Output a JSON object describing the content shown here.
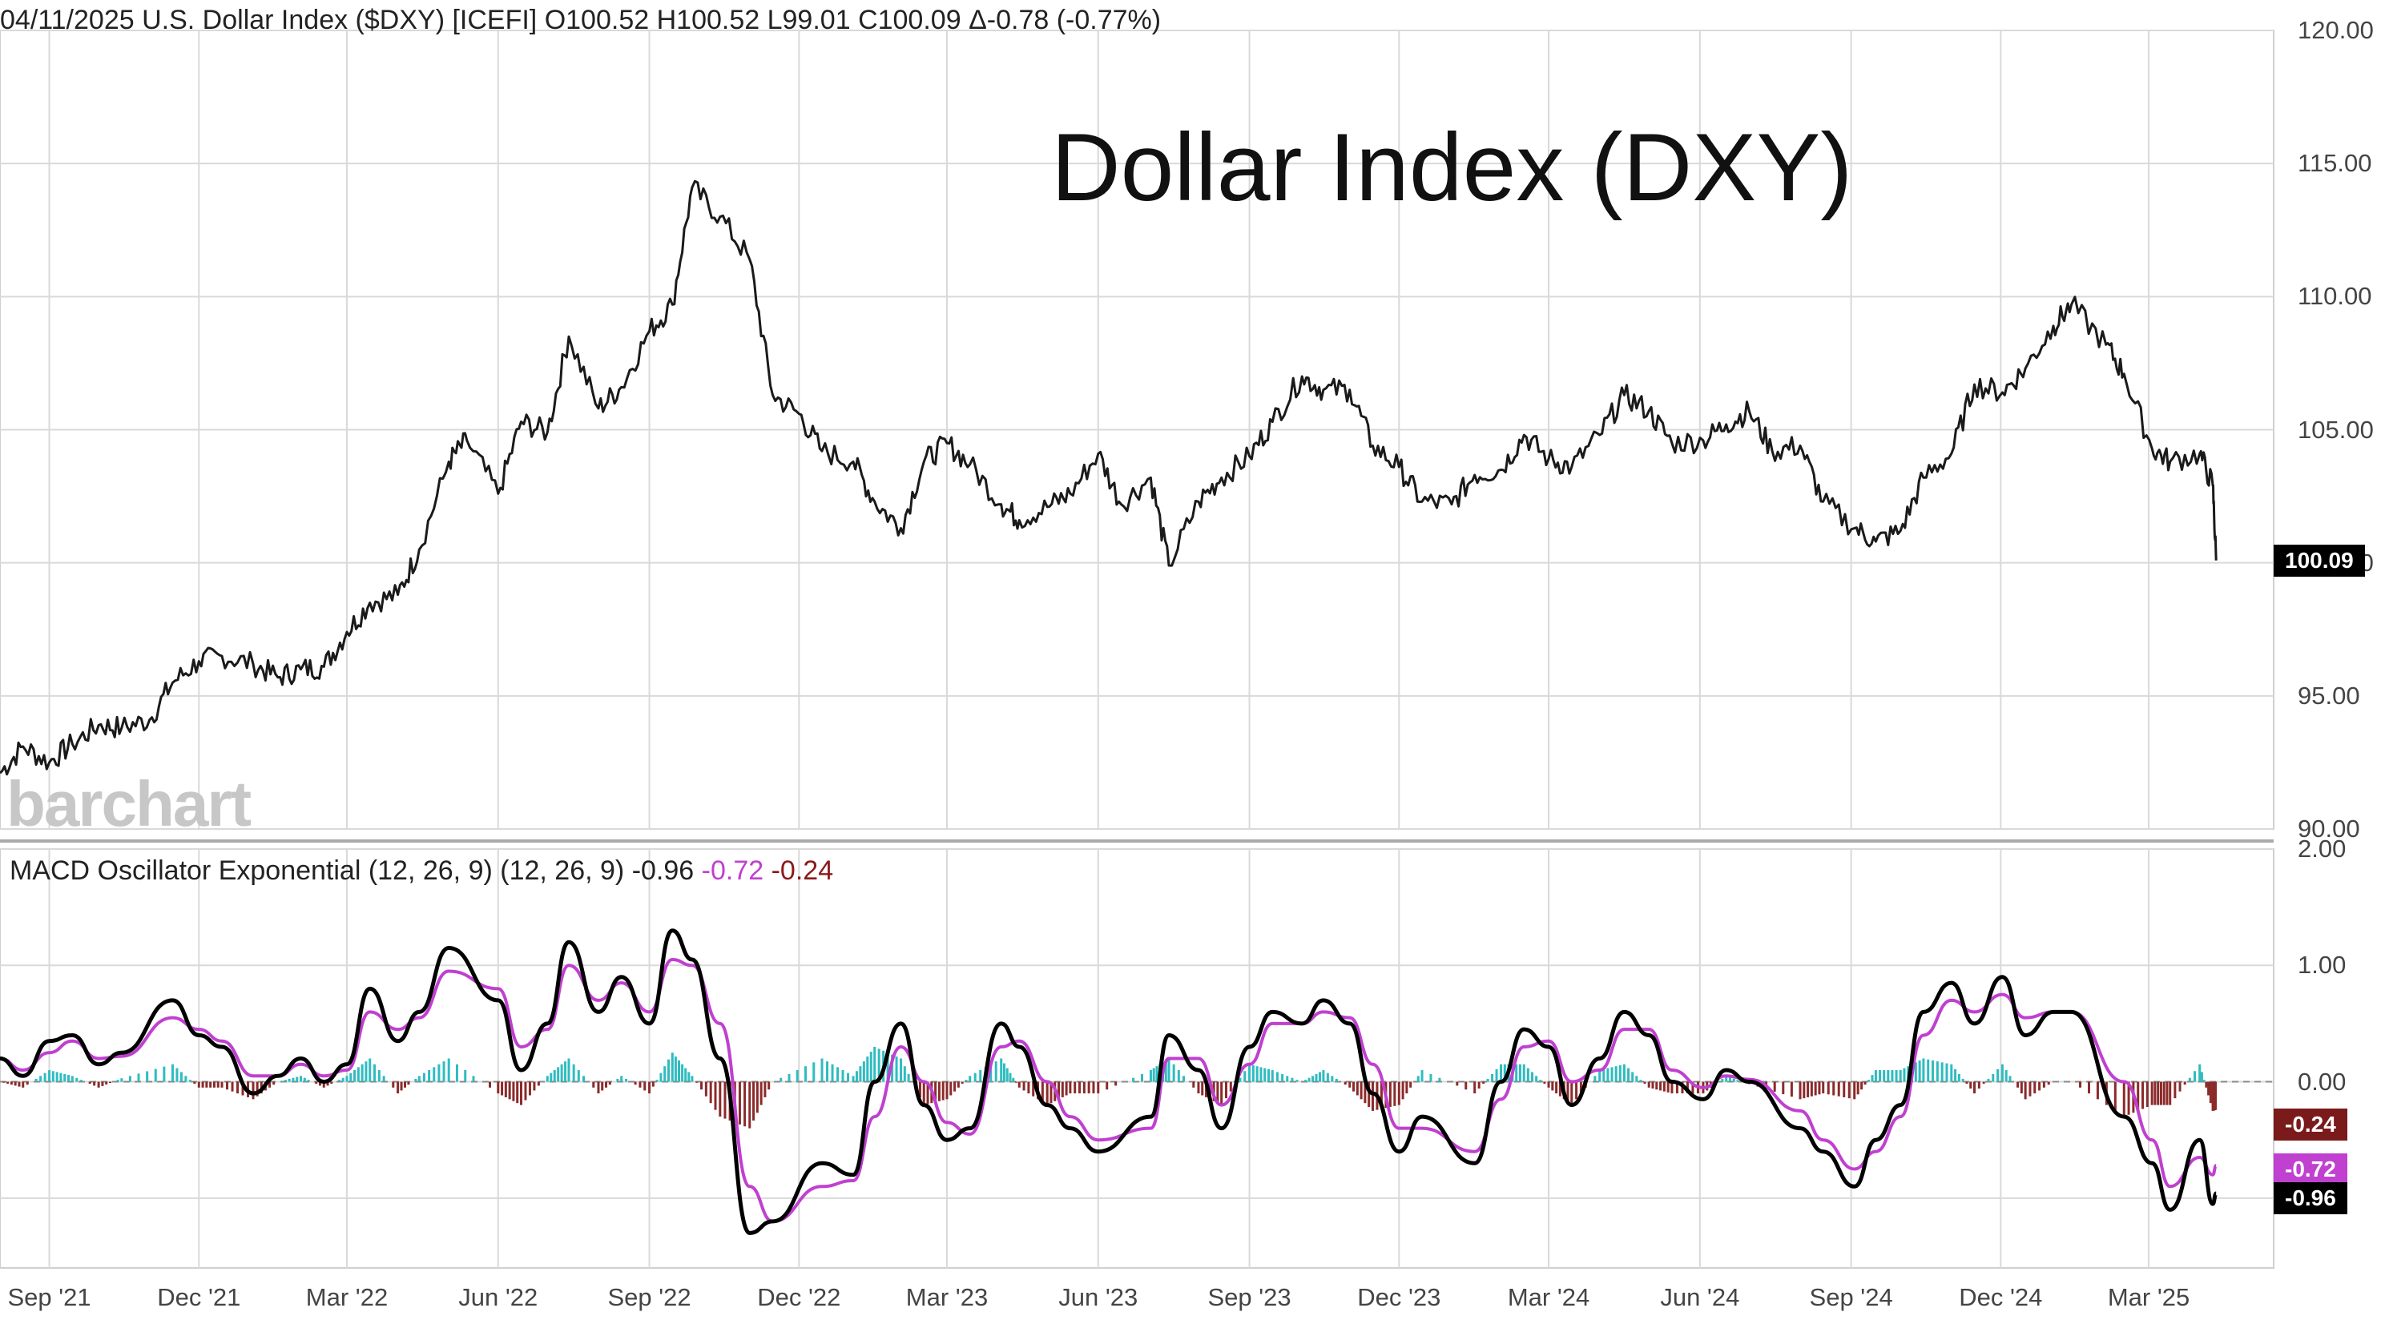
{
  "header": {
    "date": "04/11/2025",
    "instrument": "U.S. Dollar Index ($DXY) [ICEFI]",
    "open": "O100.52",
    "high": "H100.52",
    "low": "L99.01",
    "close": "C100.09",
    "change": "Δ-0.78 (-0.77%)"
  },
  "annotation_title": "Dollar Index (DXY)",
  "watermark": "barchart",
  "macd_header": {
    "name": "MACD Oscillator Exponential (12, 26, 9)",
    "params": "(12, 26, 9)",
    "macd": "-0.96",
    "signal": "-0.72",
    "histogram": "-0.24"
  },
  "colors": {
    "price_line": "#1a1a1a",
    "macd_line": "#000000",
    "signal_line": "#c040d0",
    "hist_positive": "#2fbcc0",
    "hist_negative": "#8b2a2a",
    "hist_negative_tag": "#7a1a1a",
    "grid": "#d9d9d9"
  },
  "tags": {
    "last_price": "100.09",
    "histogram": "-0.24",
    "signal": "-0.72",
    "macd": "-0.96"
  },
  "chart_data": [
    {
      "type": "line",
      "title": "U.S. Dollar Index ($DXY)",
      "ylim": [
        90,
        120
      ],
      "yticks": [
        "120.00",
        "115.00",
        "110.00",
        "105.00",
        "100.00",
        "95.00",
        "90.00"
      ],
      "xticks": [
        "Sep '21",
        "Dec '21",
        "Mar '22",
        "Jun '22",
        "Sep '22",
        "Dec '22",
        "Mar '23",
        "Jun '23",
        "Sep '23",
        "Dec '23",
        "Mar '24",
        "Jun '24",
        "Sep '24",
        "Dec '24",
        "Mar '25"
      ],
      "x": [
        "2021-08-02",
        "2021-08-16",
        "2021-09-01",
        "2021-09-15",
        "2021-10-01",
        "2021-10-15",
        "2021-11-01",
        "2021-11-15",
        "2021-12-01",
        "2021-12-15",
        "2022-01-03",
        "2022-01-18",
        "2022-02-01",
        "2022-02-15",
        "2022-03-01",
        "2022-03-15",
        "2022-04-01",
        "2022-04-14",
        "2022-05-02",
        "2022-05-13",
        "2022-06-01",
        "2022-06-15",
        "2022-07-01",
        "2022-07-14",
        "2022-08-01",
        "2022-08-15",
        "2022-09-01",
        "2022-09-15",
        "2022-09-27",
        "2022-10-14",
        "2022-11-01",
        "2022-11-15",
        "2022-12-01",
        "2022-12-15",
        "2023-01-03",
        "2023-01-16",
        "2023-02-01",
        "2023-02-15",
        "2023-03-01",
        "2023-03-15",
        "2023-04-03",
        "2023-04-14",
        "2023-05-01",
        "2023-05-15",
        "2023-06-01",
        "2023-06-15",
        "2023-07-03",
        "2023-07-14",
        "2023-08-01",
        "2023-08-15",
        "2023-09-01",
        "2023-09-15",
        "2023-10-03",
        "2023-10-16",
        "2023-11-01",
        "2023-11-15",
        "2023-12-01",
        "2023-12-15",
        "2024-01-02",
        "2024-01-16",
        "2024-02-01",
        "2024-02-15",
        "2024-03-01",
        "2024-03-15",
        "2024-04-01",
        "2024-04-16",
        "2024-05-01",
        "2024-05-15",
        "2024-06-03",
        "2024-06-17",
        "2024-07-01",
        "2024-07-15",
        "2024-08-01",
        "2024-08-15",
        "2024-09-03",
        "2024-09-16",
        "2024-10-01",
        "2024-10-15",
        "2024-11-01",
        "2024-11-15",
        "2024-12-02",
        "2024-12-16",
        "2025-01-02",
        "2025-01-13",
        "2025-02-03",
        "2025-02-14",
        "2025-03-03",
        "2025-03-14",
        "2025-04-01",
        "2025-04-09",
        "2025-04-11"
      ],
      "series": [
        {
          "values": [
            92.1,
            93.1,
            92.5,
            93.2,
            93.9,
            93.8,
            94.1,
            95.5,
            96.3,
            96.5,
            96.2,
            95.7,
            96.0,
            96.1,
            97.4,
            98.5,
            98.8,
            100.5,
            103.8,
            104.6,
            102.6,
            105.3,
            104.9,
            108.5,
            105.8,
            106.6,
            108.7,
            109.7,
            114.1,
            113.0,
            111.4,
            106.3,
            105.6,
            104.2,
            103.8,
            102.3,
            101.3,
            103.8,
            104.5,
            103.7,
            102.2,
            101.6,
            102.1,
            102.6,
            104.1,
            102.2,
            103.2,
            99.9,
            102.3,
            103.2,
            104.0,
            105.3,
            107.0,
            106.5,
            106.5,
            104.4,
            103.6,
            102.3,
            102.2,
            103.3,
            103.5,
            104.8,
            103.9,
            103.6,
            104.8,
            106.3,
            105.7,
            104.5,
            104.6,
            105.2,
            105.7,
            104.2,
            104.4,
            102.3,
            101.3,
            100.8,
            101.2,
            103.2,
            104.1,
            106.7,
            106.4,
            107.3,
            108.9,
            109.7,
            108.2,
            107.1,
            104.3,
            103.8,
            104.1,
            102.9,
            100.09
          ]
        }
      ]
    },
    {
      "type": "line",
      "title": "MACD Oscillator Exponential (12, 26, 9)",
      "ylim": [
        -1.6,
        2.0
      ],
      "yticks": [
        "2.00",
        "1.00",
        "0.00"
      ],
      "series": [
        {
          "name": "MACD",
          "values": [
            0.2,
            0.05,
            0.35,
            0.4,
            0.15,
            0.25,
            0.7,
            0.4,
            0.3,
            -0.1,
            0.05,
            0.2,
            0.0,
            0.15,
            0.8,
            0.35,
            0.6,
            1.15,
            0.7,
            0.1,
            0.5,
            1.2,
            0.6,
            0.9,
            0.5,
            1.3,
            1.05,
            0.2,
            -1.3,
            -1.2,
            -0.7,
            -0.8,
            0.0,
            0.5,
            -0.2,
            -0.5,
            -0.4,
            0.5,
            0.3,
            -0.2,
            -0.4,
            -0.6,
            -0.3,
            0.4,
            0.1,
            -0.4,
            0.3,
            0.6,
            0.5,
            0.7,
            0.5,
            -0.1,
            -0.6,
            -0.3,
            -0.7,
            0.0,
            0.45,
            0.3,
            -0.2,
            0.2,
            0.6,
            0.4,
            0.0,
            -0.15,
            0.1,
            0.0,
            -0.4,
            -0.6,
            -0.9,
            -0.5,
            -0.2,
            0.6,
            0.85,
            0.5,
            0.9,
            0.4,
            0.6,
            0.6,
            -0.3,
            -0.7,
            -1.1,
            -0.5,
            -1.05,
            -0.96
          ]
        },
        {
          "name": "Signal",
          "values": [
            0.2,
            0.1,
            0.25,
            0.35,
            0.2,
            0.22,
            0.55,
            0.45,
            0.35,
            0.05,
            0.05,
            0.15,
            0.05,
            0.1,
            0.6,
            0.45,
            0.55,
            0.95,
            0.8,
            0.3,
            0.45,
            1.0,
            0.7,
            0.85,
            0.6,
            1.05,
            1.0,
            0.5,
            -0.9,
            -1.2,
            -0.9,
            -0.85,
            -0.3,
            0.3,
            0.0,
            -0.35,
            -0.45,
            0.3,
            0.35,
            0.0,
            -0.3,
            -0.5,
            -0.4,
            0.2,
            0.2,
            -0.2,
            0.15,
            0.5,
            0.5,
            0.6,
            0.55,
            0.15,
            -0.4,
            -0.4,
            -0.6,
            -0.15,
            0.3,
            0.35,
            0.0,
            0.1,
            0.45,
            0.45,
            0.1,
            -0.05,
            0.05,
            0.02,
            -0.25,
            -0.5,
            -0.75,
            -0.6,
            -0.3,
            0.4,
            0.7,
            0.6,
            0.75,
            0.55,
            0.6,
            0.6,
            0.0,
            -0.5,
            -0.9,
            -0.65,
            -0.8,
            -0.72
          ]
        }
      ]
    }
  ]
}
